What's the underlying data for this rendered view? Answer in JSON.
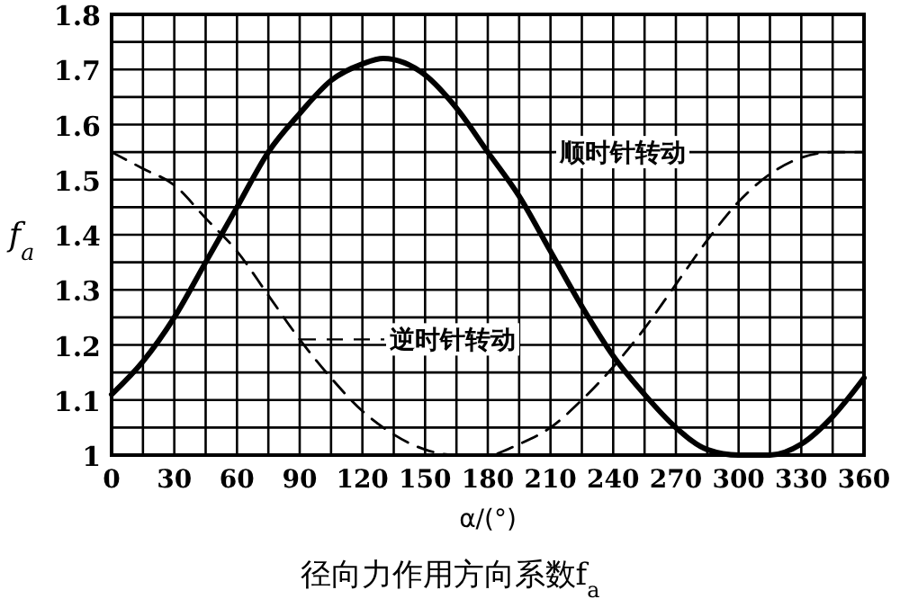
{
  "chart_data": {
    "type": "line",
    "title": "径向力作用方向系数f$_{a}$",
    "xlabel": "α/(°)",
    "ylabel": "f$_{a}$",
    "grid": true,
    "marker": "none",
    "x": [
      0,
      15,
      30,
      45,
      60,
      75,
      90,
      105,
      120,
      130,
      150,
      165,
      180,
      195,
      210,
      225,
      240,
      255,
      270,
      285,
      300,
      315,
      330,
      345,
      360
    ],
    "xlim": [
      0,
      360
    ],
    "xticks": [
      0,
      {
        "value": 15,
        "label": null
      },
      30,
      {
        "value": 45,
        "label": null
      },
      60,
      {
        "value": 75,
        "label": null
      },
      90,
      {
        "value": 105,
        "label": null
      },
      120,
      {
        "value": 135,
        "label": null
      },
      150,
      {
        "value": 165,
        "label": null
      },
      180,
      {
        "value": 195,
        "label": null
      },
      210,
      {
        "value": 225,
        "label": null
      },
      240,
      {
        "value": 255,
        "label": null
      },
      270,
      {
        "value": 285,
        "label": null
      },
      300,
      {
        "value": 315,
        "label": null
      },
      330,
      {
        "value": 345,
        "label": null
      },
      360
    ],
    "ylim": [
      1,
      1.8
    ],
    "yticks": [
      1,
      {
        "value": 1.05,
        "label": null
      },
      1.1,
      {
        "value": 1.15,
        "label": null
      },
      1.2,
      {
        "value": 1.25,
        "label": null
      },
      1.3,
      {
        "value": 1.35,
        "label": null
      },
      1.4,
      {
        "value": 1.45,
        "label": null
      },
      1.5,
      {
        "value": 1.55,
        "label": null
      },
      1.6,
      {
        "value": 1.65,
        "label": null
      },
      1.7,
      {
        "value": 1.75,
        "label": null
      },
      1.8
    ],
    "series": [
      {
        "name": "顺时针转动",
        "color": "#000000",
        "line_style": "solid",
        "values": [
          1.11,
          1.17,
          1.25,
          1.35,
          1.45,
          1.55,
          1.62,
          1.68,
          1.71,
          1.72,
          1.69,
          1.63,
          1.55,
          1.47,
          1.37,
          1.27,
          1.18,
          1.11,
          1.05,
          1.01,
          1.0,
          1.0,
          1.02,
          1.07,
          1.14
        ]
      },
      {
        "name": "逆时针转动",
        "color": "#000000",
        "line_style": "dashed",
        "values": [
          1.55,
          1.52,
          1.49,
          1.43,
          1.37,
          1.29,
          1.21,
          1.14,
          1.08,
          1.05,
          1.01,
          1.0,
          1.0,
          1.02,
          1.05,
          1.1,
          1.16,
          1.23,
          1.31,
          1.39,
          1.46,
          1.51,
          1.54,
          1.55,
          1.55
        ]
      }
    ]
  }
}
